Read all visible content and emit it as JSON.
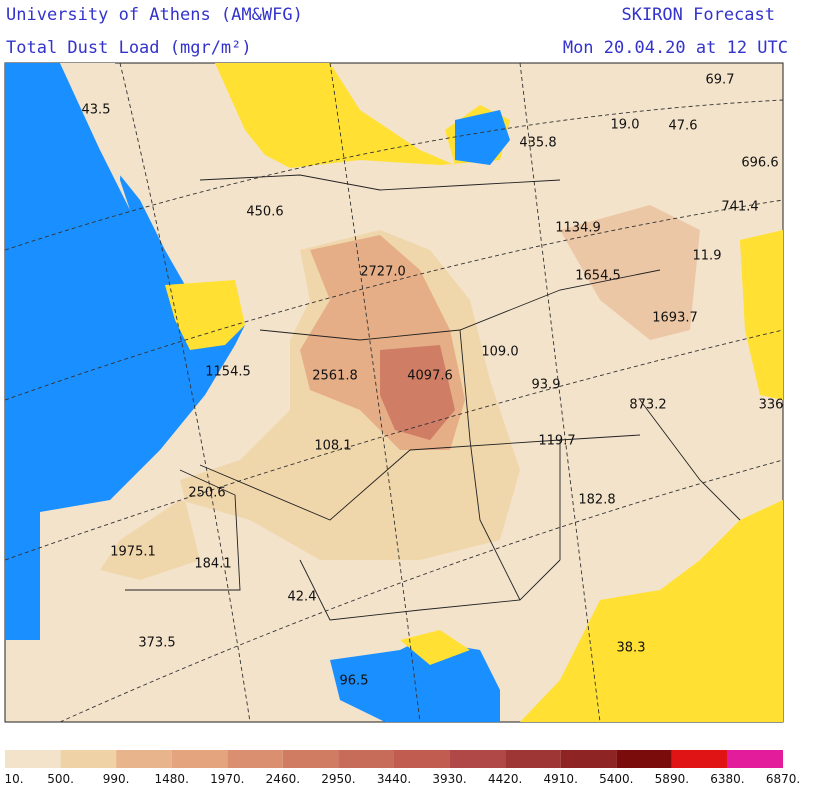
{
  "header": {
    "institution": "University of Athens (AM&WFG)",
    "product": "SKIRON Forecast",
    "variable": "Total Dust Load (mgr/m²)",
    "valid_time": "Mon 20.04.20 at 12 UTC"
  },
  "map": {
    "labels": [
      "43.5",
      "69.7",
      "19.0",
      "47.6",
      "435.8",
      "696.6",
      "450.6",
      "741.4",
      "1134.9",
      "2727.0",
      "11.9",
      "1654.5",
      "1693.7",
      "109.0",
      "1154.5",
      "2561.8",
      "4097.6",
      "93.9",
      "873.2",
      "336",
      "108.1",
      "119.7",
      "250.6",
      "182.8",
      "1975.1",
      "184.1",
      "42.4",
      "373.5",
      "38.3",
      "96.5"
    ]
  },
  "legend": {
    "labels": [
      "10.",
      "500.",
      "990.",
      "1480.",
      "1970.",
      "2460.",
      "2950.",
      "3440.",
      "3930.",
      "4420.",
      "4910.",
      "5400.",
      "5890.",
      "6380.",
      "6870."
    ],
    "colors": [
      "#f3e3cb",
      "#efd3a6",
      "#e8b48c",
      "#e3a47e",
      "#da9070",
      "#d07c62",
      "#c86c5a",
      "#c05c50",
      "#b04848",
      "#9e3636",
      "#8e2424",
      "#7a0c0c",
      "#e01414",
      "#e21c9a"
    ]
  }
}
